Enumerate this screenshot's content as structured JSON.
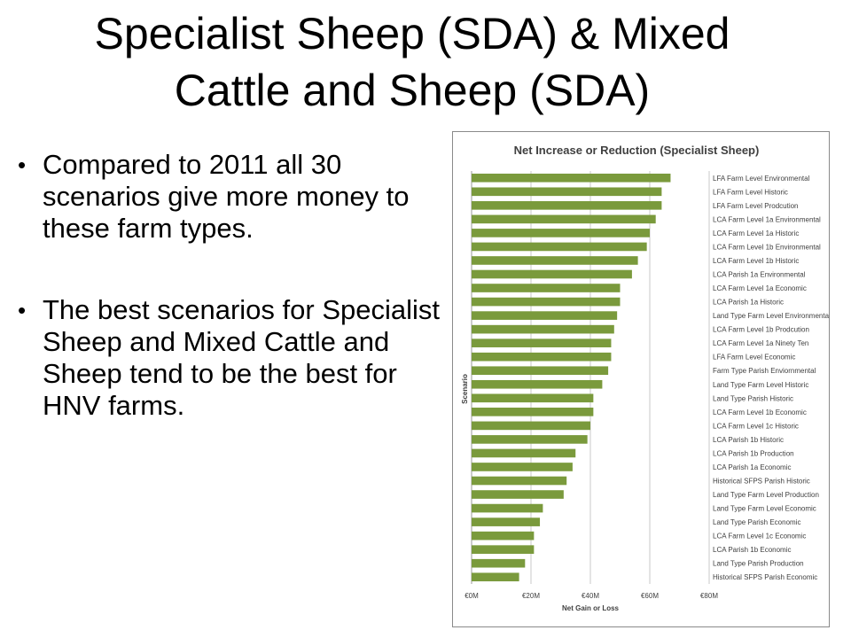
{
  "slide": {
    "title_line1": "Specialist Sheep (SDA) & Mixed",
    "title_line2": "Cattle and Sheep (SDA)",
    "bullets": [
      "Compared to 2011 all 30 scenarios give more money to these farm types.",
      "The best scenarios for Specialist Sheep and Mixed Cattle and Sheep tend to be the best for HNV farms."
    ]
  },
  "chart_data": {
    "type": "bar",
    "orientation": "horizontal",
    "title": "Net Increase or Reduction (Specialist Sheep)",
    "xlabel": "Net Gain or Loss",
    "ylabel": "Scenario",
    "xlim": [
      0,
      80
    ],
    "x_ticks": [
      "€0M",
      "€20M",
      "€40M",
      "€60M",
      "€80M"
    ],
    "grid": true,
    "bar_color": "#7a9a3c",
    "categories": [
      "LFA Farm Level Environmental",
      "LFA Farm Level Historic",
      "LFA Farm Level Prodcution",
      "LCA Farm Level 1a Environmental",
      "LCA Farm Level 1a Historic",
      "LCA Farm Level 1b Environmental",
      "LCA Farm Level 1b Historic",
      "LCA Parish 1a Environmental",
      "LCA Farm Level 1a Economic",
      "LCA Parish 1a Historic",
      "Land Type Farm Level Environmental",
      "LCA Farm Level 1b Prodcution",
      "LCA Farm Level 1a Ninety Ten",
      "LFA Farm Level Economic",
      "Farm Type Parish Enviornmental",
      "Land Type Farm Level Historic",
      "Land Type Parish Historic",
      "LCA Farm Level 1b Economic",
      "LCA Farm Level 1c Historic",
      "LCA Parish 1b Historic",
      "LCA Parish 1b Production",
      "LCA Parish 1a Economic",
      "Historical SFPS Parish Historic",
      "Land Type Farm Level Production",
      "Land Type Farm Level Economic",
      "Land Type Parish Economic",
      "LCA Farm Level 1c Economic",
      "LCA Parish 1b Economic",
      "Land Type Parish Production",
      "Historical SFPS Parish Economic"
    ],
    "values": [
      67,
      64,
      64,
      62,
      60,
      59,
      56,
      54,
      50,
      50,
      49,
      48,
      47,
      47,
      46,
      44,
      41,
      41,
      40,
      39,
      35,
      34,
      32,
      31,
      24,
      23,
      21,
      21,
      18,
      16
    ]
  }
}
